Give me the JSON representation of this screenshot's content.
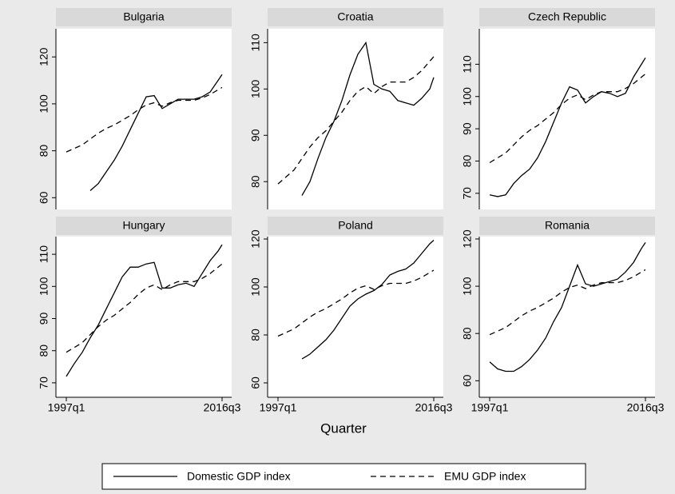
{
  "x_label": "Quarter",
  "chart_data": [
    {
      "type": "line",
      "title": "Bulgaria",
      "x": [
        1997,
        1998,
        1999,
        2000,
        2001,
        2002,
        2003,
        2004,
        2005,
        2006,
        2007,
        2008,
        2009,
        2010,
        2011,
        2012,
        2013,
        2014,
        2015,
        2016,
        2016.5
      ],
      "xlim": [
        1995.7,
        2017.7
      ],
      "ylim": [
        55,
        132
      ],
      "yticks": [
        60,
        80,
        100,
        120
      ],
      "series": [
        {
          "name": "Domestic GDP index",
          "color": "#000000",
          "style": "solid",
          "values": [
            null,
            null,
            null,
            63,
            66,
            71,
            76,
            82,
            89,
            96,
            103,
            103.5,
            98,
            100,
            102,
            102,
            102,
            103,
            105,
            110,
            112.5
          ]
        },
        {
          "name": "EMU GDP index",
          "color": "#000000",
          "style": "dashed",
          "values": [
            79.5,
            81,
            82.5,
            85,
            87.5,
            89.5,
            91,
            93,
            95,
            97.5,
            99.5,
            100.5,
            99,
            100.5,
            101.5,
            101.5,
            101.5,
            102.5,
            104,
            106,
            107
          ]
        }
      ]
    },
    {
      "type": "line",
      "title": "Croatia",
      "x": [
        1997,
        1998,
        1999,
        2000,
        2001,
        2002,
        2003,
        2004,
        2005,
        2006,
        2007,
        2008,
        2009,
        2010,
        2011,
        2012,
        2013,
        2014,
        2015,
        2016,
        2016.5
      ],
      "xlim": [
        1995.7,
        2017.7
      ],
      "ylim": [
        74,
        113
      ],
      "yticks": [
        80,
        90,
        100,
        110
      ],
      "series": [
        {
          "name": "Domestic GDP index",
          "color": "#000000",
          "style": "solid",
          "values": [
            null,
            null,
            null,
            77,
            80,
            85,
            89.5,
            93,
            97.5,
            103,
            107.5,
            110,
            101,
            100,
            99.5,
            97.5,
            97,
            96.5,
            98,
            100,
            102.5
          ]
        },
        {
          "name": "EMU GDP index",
          "color": "#000000",
          "style": "dashed",
          "values": [
            79.5,
            81,
            82.5,
            85,
            87.5,
            89.5,
            91,
            93,
            95,
            97.5,
            99.5,
            100.5,
            99,
            100.5,
            101.5,
            101.5,
            101.5,
            102.5,
            104,
            106,
            107
          ]
        }
      ]
    },
    {
      "type": "line",
      "title": "Czech Republic",
      "x": [
        1997,
        1998,
        1999,
        2000,
        2001,
        2002,
        2003,
        2004,
        2005,
        2006,
        2007,
        2008,
        2009,
        2010,
        2011,
        2012,
        2013,
        2014,
        2015,
        2016,
        2016.5
      ],
      "xlim": [
        1995.7,
        2017.7
      ],
      "ylim": [
        65,
        121
      ],
      "yticks": [
        70,
        80,
        90,
        100,
        110
      ],
      "series": [
        {
          "name": "Domestic GDP index",
          "color": "#000000",
          "style": "solid",
          "values": [
            69.5,
            69,
            69.5,
            73,
            75.5,
            77.5,
            81,
            86,
            92,
            98,
            103,
            102,
            98,
            100,
            101.5,
            101,
            100,
            101,
            106,
            110,
            112
          ]
        },
        {
          "name": "EMU GDP index",
          "color": "#000000",
          "style": "dashed",
          "values": [
            79.5,
            81,
            82.5,
            85,
            87.5,
            89.5,
            91,
            93,
            95,
            97.5,
            99.5,
            100.5,
            99,
            100.5,
            101.5,
            101.5,
            101.5,
            102.5,
            104,
            106,
            107
          ]
        }
      ]
    },
    {
      "type": "line",
      "title": "Hungary",
      "x": [
        1997,
        1998,
        1999,
        2000,
        2001,
        2002,
        2003,
        2004,
        2005,
        2006,
        2007,
        2008,
        2009,
        2010,
        2011,
        2012,
        2013,
        2014,
        2015,
        2016,
        2016.5
      ],
      "xlim": [
        1995.7,
        2017.7
      ],
      "xticks": [
        {
          "value": 1997,
          "label": "1997q1"
        },
        {
          "value": 2016.5,
          "label": "2016q3"
        }
      ],
      "ylim": [
        65.5,
        115.5
      ],
      "yticks": [
        70,
        80,
        90,
        100,
        110
      ],
      "series": [
        {
          "name": "Domestic GDP index",
          "color": "#000000",
          "style": "solid",
          "values": [
            72,
            76,
            79.5,
            84,
            88,
            93,
            98,
            103,
            106,
            106,
            107,
            107.5,
            99.5,
            99.5,
            100.5,
            101,
            100,
            104,
            108,
            111,
            113
          ]
        },
        {
          "name": "EMU GDP index",
          "color": "#000000",
          "style": "dashed",
          "values": [
            79.5,
            81,
            82.5,
            85,
            87.5,
            89.5,
            91,
            93,
            95,
            97.5,
            99.5,
            100.5,
            99,
            100.5,
            101.5,
            101.5,
            101.5,
            102.5,
            104,
            106,
            107
          ]
        }
      ]
    },
    {
      "type": "line",
      "title": "Poland",
      "x": [
        1997,
        1998,
        1999,
        2000,
        2001,
        2002,
        2003,
        2004,
        2005,
        2006,
        2007,
        2008,
        2009,
        2010,
        2011,
        2012,
        2013,
        2014,
        2015,
        2016,
        2016.5
      ],
      "xlim": [
        1995.7,
        2017.7
      ],
      "xticks": [
        {
          "value": 1997,
          "label": "1997q1"
        },
        {
          "value": 2016.5,
          "label": "2016q3"
        }
      ],
      "ylim": [
        54,
        121
      ],
      "yticks": [
        60,
        80,
        100,
        120
      ],
      "series": [
        {
          "name": "Domestic GDP index",
          "color": "#000000",
          "style": "solid",
          "values": [
            null,
            null,
            null,
            70,
            72,
            75,
            78,
            82,
            87,
            92,
            95,
            97,
            98.5,
            101,
            105,
            106.5,
            107.5,
            110,
            114,
            118,
            119.5
          ]
        },
        {
          "name": "EMU GDP index",
          "color": "#000000",
          "style": "dashed",
          "values": [
            79.5,
            81,
            82.5,
            85,
            87.5,
            89.5,
            91,
            93,
            95,
            97.5,
            99.5,
            100.5,
            99,
            100.5,
            101.5,
            101.5,
            101.5,
            102.5,
            104,
            106,
            107
          ]
        }
      ]
    },
    {
      "type": "line",
      "title": "Romania",
      "x": [
        1997,
        1998,
        1999,
        2000,
        2001,
        2002,
        2003,
        2004,
        2005,
        2006,
        2007,
        2008,
        2009,
        2010,
        2011,
        2012,
        2013,
        2014,
        2015,
        2016,
        2016.5
      ],
      "xlim": [
        1995.7,
        2017.7
      ],
      "xticks": [
        {
          "value": 1997,
          "label": "1997q1"
        },
        {
          "value": 2016.5,
          "label": "2016q3"
        }
      ],
      "ylim": [
        53,
        121
      ],
      "yticks": [
        60,
        80,
        100,
        120
      ],
      "series": [
        {
          "name": "Domestic GDP index",
          "color": "#000000",
          "style": "solid",
          "values": [
            68,
            65,
            64,
            64,
            66,
            69,
            73,
            78,
            85,
            91,
            100,
            109,
            101,
            100,
            101,
            102,
            103,
            106,
            110,
            116,
            118.5
          ]
        },
        {
          "name": "EMU GDP index",
          "color": "#000000",
          "style": "dashed",
          "values": [
            79.5,
            81,
            82.5,
            85,
            87.5,
            89.5,
            91,
            93,
            95,
            97.5,
            99.5,
            100.5,
            99,
            100.5,
            101.5,
            101.5,
            101.5,
            102.5,
            104,
            106,
            107
          ]
        }
      ]
    }
  ]
}
